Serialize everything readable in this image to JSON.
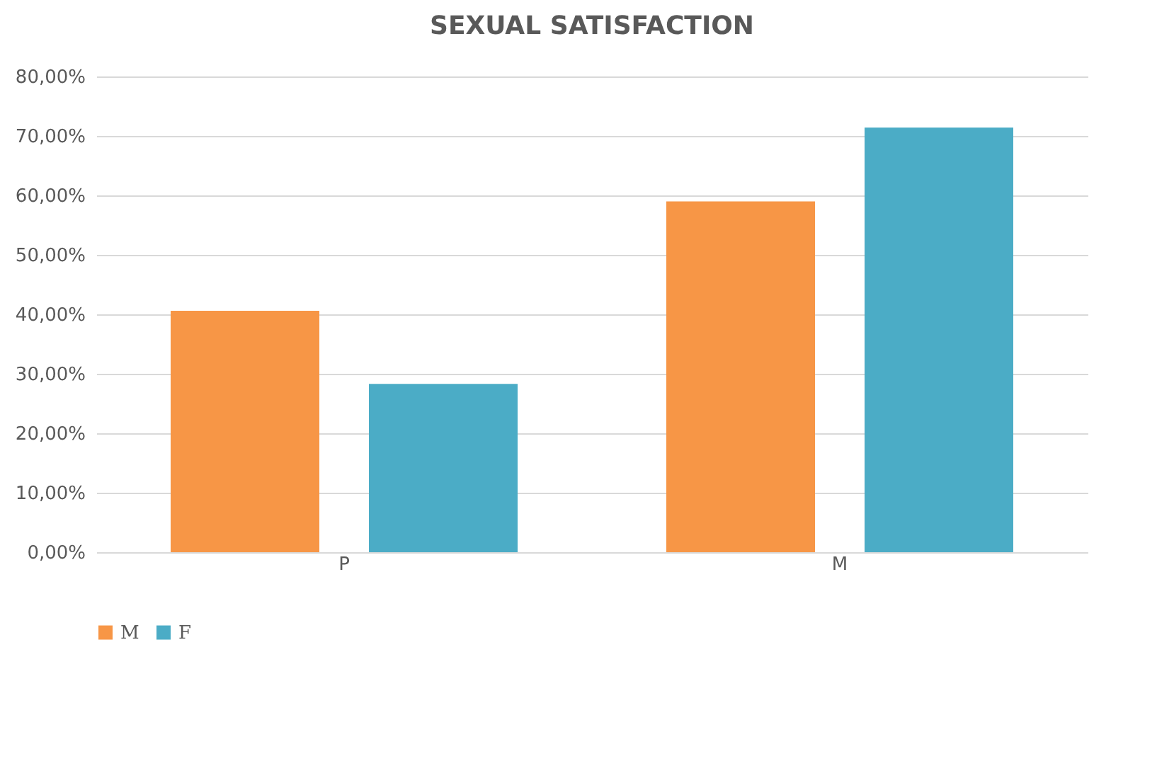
{
  "chart_data": {
    "type": "bar",
    "title": "SEXUAL SATISFACTION",
    "categories": [
      "P",
      "M"
    ],
    "series": [
      {
        "name": "M",
        "color": "#f79646",
        "values": [
          40.6,
          59.0
        ]
      },
      {
        "name": "F",
        "color": "#4bacc6",
        "values": [
          28.3,
          71.4
        ]
      }
    ],
    "ylim": [
      0,
      80
    ],
    "yticks": [
      {
        "value": 0,
        "label": "0,00%"
      },
      {
        "value": 10,
        "label": "10,00%"
      },
      {
        "value": 20,
        "label": "20,00%"
      },
      {
        "value": 30,
        "label": "30,00%"
      },
      {
        "value": 40,
        "label": "40,00%"
      },
      {
        "value": 50,
        "label": "50,00%"
      },
      {
        "value": 60,
        "label": "60,00%"
      },
      {
        "value": 70,
        "label": "70,00%"
      },
      {
        "value": 80,
        "label": "80,00%"
      }
    ],
    "grid": "y",
    "legend": "bottom"
  }
}
